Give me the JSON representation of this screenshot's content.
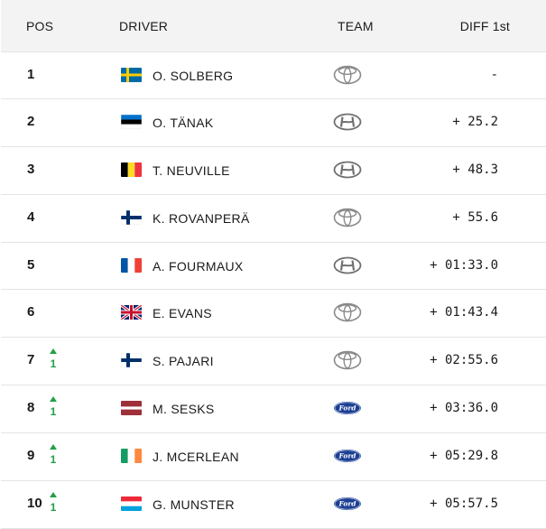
{
  "header": {
    "pos": "POS",
    "driver": "DRIVER",
    "team": "TEAM",
    "diff": "DIFF 1st"
  },
  "rows": [
    {
      "pos": "1",
      "move": null,
      "flag": "sweden",
      "driver": "O. SOLBERG",
      "team": "toyota-logo",
      "diff": "-"
    },
    {
      "pos": "2",
      "move": null,
      "flag": "estonia",
      "driver": "O. TÄNAK",
      "team": "hyundai-logo",
      "diff": "+ 25.2"
    },
    {
      "pos": "3",
      "move": null,
      "flag": "belgium",
      "driver": "T. NEUVILLE",
      "team": "hyundai-logo",
      "diff": "+ 48.3"
    },
    {
      "pos": "4",
      "move": null,
      "flag": "finland",
      "driver": "K. ROVANPERÄ",
      "team": "toyota-logo",
      "diff": "+ 55.6"
    },
    {
      "pos": "5",
      "move": null,
      "flag": "france",
      "driver": "A. FOURMAUX",
      "team": "hyundai-logo",
      "diff": "+ 01:33.0"
    },
    {
      "pos": "6",
      "move": null,
      "flag": "uk",
      "driver": "E. EVANS",
      "team": "toyota-logo",
      "diff": "+ 01:43.4"
    },
    {
      "pos": "7",
      "move": "1",
      "flag": "finland",
      "driver": "S. PAJARI",
      "team": "toyota-logo",
      "diff": "+ 02:55.6"
    },
    {
      "pos": "8",
      "move": "1",
      "flag": "latvia",
      "driver": "M. SESKS",
      "team": "ford-logo",
      "diff": "+ 03:36.0"
    },
    {
      "pos": "9",
      "move": "1",
      "flag": "ireland",
      "driver": "J. MCERLEAN",
      "team": "ford-logo",
      "diff": "+ 05:29.8"
    },
    {
      "pos": "10",
      "move": "1",
      "flag": "luxembourg",
      "driver": "G. MUNSTER",
      "team": "ford-logo",
      "diff": "+ 05:57.5"
    }
  ],
  "colors": {
    "move_up": "#22a045",
    "header_bg": "#f3f3f4",
    "row_border": "#e4e4e6"
  }
}
